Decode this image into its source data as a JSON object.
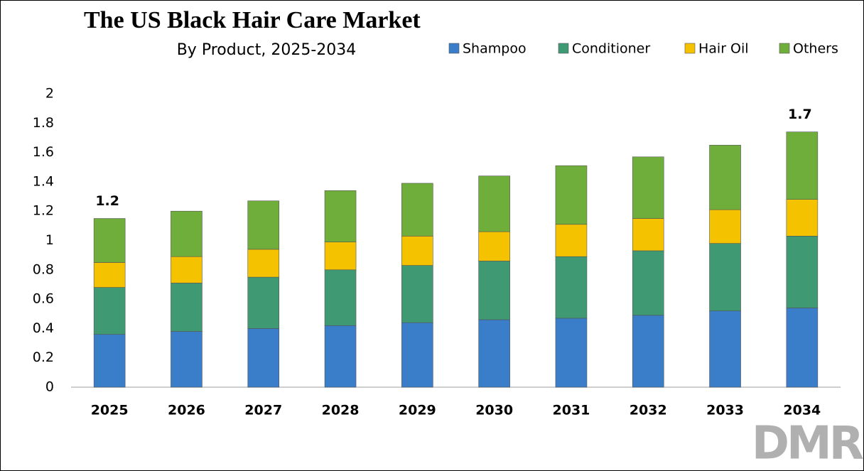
{
  "chart_data": {
    "type": "stacked_bar",
    "title": "The US Black Hair Care Market",
    "subtitle": "By Product, 2025-2034",
    "categories": [
      "2025",
      "2026",
      "2027",
      "2028",
      "2029",
      "2030",
      "2031",
      "2032",
      "2033",
      "2034"
    ],
    "series": [
      {
        "name": "Shampoo",
        "color": "#3a7dc9",
        "values": [
          0.36,
          0.38,
          0.4,
          0.42,
          0.44,
          0.46,
          0.47,
          0.49,
          0.52,
          0.54
        ]
      },
      {
        "name": "Conditioner",
        "color": "#3f9a73",
        "values": [
          0.32,
          0.33,
          0.35,
          0.38,
          0.39,
          0.4,
          0.42,
          0.44,
          0.46,
          0.49
        ]
      },
      {
        "name": "Hair Oil",
        "color": "#f5c200",
        "values": [
          0.17,
          0.18,
          0.19,
          0.19,
          0.2,
          0.2,
          0.22,
          0.22,
          0.23,
          0.25
        ]
      },
      {
        "name": "Others",
        "color": "#6fae3a",
        "values": [
          0.3,
          0.31,
          0.33,
          0.35,
          0.36,
          0.38,
          0.4,
          0.42,
          0.44,
          0.46
        ]
      }
    ],
    "annotations": [
      {
        "category_index": 0,
        "text": "1.2"
      },
      {
        "category_index": 9,
        "text": "1.7"
      }
    ],
    "ylim": [
      0,
      2
    ],
    "yticks": [
      0,
      0.2,
      0.4,
      0.6,
      0.8,
      1,
      1.2,
      1.4,
      1.6,
      1.8,
      2
    ],
    "logo": "DMR"
  }
}
